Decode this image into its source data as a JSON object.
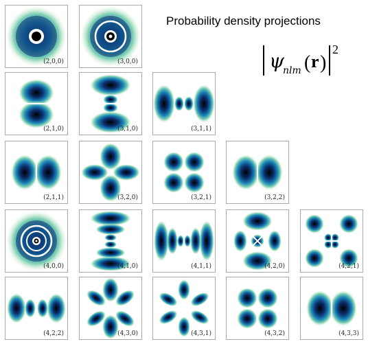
{
  "header": {
    "title": "Probability density projections",
    "formula": {
      "psi": "ψ",
      "subscript": "nlm",
      "argument": "r",
      "exponent": "2"
    }
  },
  "colors": {
    "core": "#000000",
    "inner": "#0b2f6b",
    "mid": "#1a84b8",
    "outer": "#7fd0b4",
    "fade": "#dff3d6",
    "node": "#ffffff",
    "tile_border": "#a9a9a9"
  },
  "orbitals": [
    {
      "label": "(2,0,0)"
    },
    {
      "label": "(3,0,0)"
    },
    {
      "label": "(2,1,0)"
    },
    {
      "label": "(3,1,0)"
    },
    {
      "label": "(3,1,1)"
    },
    {
      "label": "(2,1,1)"
    },
    {
      "label": "(3,2,0)"
    },
    {
      "label": "(3,2,1)"
    },
    {
      "label": "(3,2,2)"
    },
    {
      "label": "(4,0,0)"
    },
    {
      "label": "(4,1,0)"
    },
    {
      "label": "(4,1,1)"
    },
    {
      "label": "(4,2,0)"
    },
    {
      "label": "(4,2,1)"
    },
    {
      "label": "(4,2,2)"
    },
    {
      "label": "(4,3,0)"
    },
    {
      "label": "(4,3,1)"
    },
    {
      "label": "(4,3,2)"
    },
    {
      "label": "(4,3,3)"
    }
  ]
}
